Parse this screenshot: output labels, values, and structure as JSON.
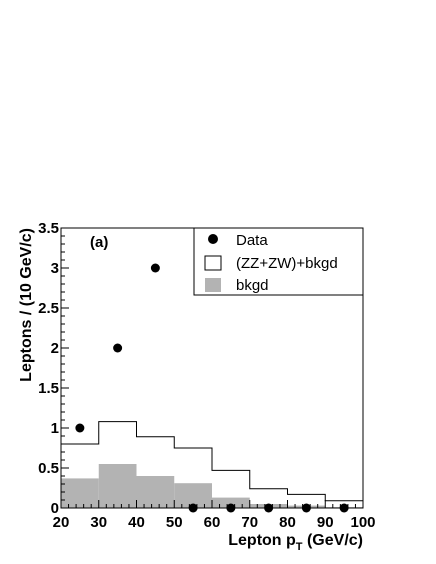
{
  "chart_data": {
    "type": "bar",
    "panel_label": "(a)",
    "xlabel": {
      "main": "Lepton p",
      "sub": "T",
      "rest": " (GeV/c)"
    },
    "ylabel": "Leptons / (10 GeV/c)",
    "xlim": [
      20,
      100
    ],
    "ylim": [
      0,
      3.5
    ],
    "x_ticks": [
      20,
      30,
      40,
      50,
      60,
      70,
      80,
      90,
      100
    ],
    "x_tick_labels": [
      "20",
      "30",
      "40",
      "50",
      "60",
      "70",
      "80",
      "90",
      "100"
    ],
    "y_ticks": [
      0,
      0.5,
      1,
      1.5,
      2,
      2.5,
      3,
      3.5
    ],
    "y_tick_labels": [
      "0",
      "0.5",
      "1",
      "1.5",
      "2",
      "2.5",
      "3",
      "3.5"
    ],
    "bin_edges": [
      20,
      30,
      40,
      50,
      60,
      70,
      80,
      90,
      100
    ],
    "legend": {
      "position": "top-right",
      "entries": [
        {
          "label": "Data",
          "style": "marker"
        },
        {
          "label": "(ZZ+ZW)+bkgd",
          "style": "open-box"
        },
        {
          "label": "bkgd",
          "style": "filled-box"
        }
      ]
    },
    "series": [
      {
        "name": "Data",
        "kind": "points",
        "x": [
          25,
          35,
          45,
          55,
          65,
          75,
          85,
          95
        ],
        "values": [
          1,
          2,
          3,
          0,
          0,
          0,
          0,
          0
        ]
      },
      {
        "name": "(ZZ+ZW)+bkgd",
        "kind": "step",
        "values": [
          0.8,
          1.08,
          0.89,
          0.75,
          0.47,
          0.24,
          0.17,
          0.09
        ]
      },
      {
        "name": "bkgd",
        "kind": "filled-histogram",
        "values": [
          0.37,
          0.55,
          0.4,
          0.31,
          0.13,
          0.05,
          0.03,
          0.01
        ]
      }
    ],
    "colors": {
      "bkgd_fill": "#b3b3b3",
      "line": "#000000",
      "marker": "#000000"
    }
  }
}
